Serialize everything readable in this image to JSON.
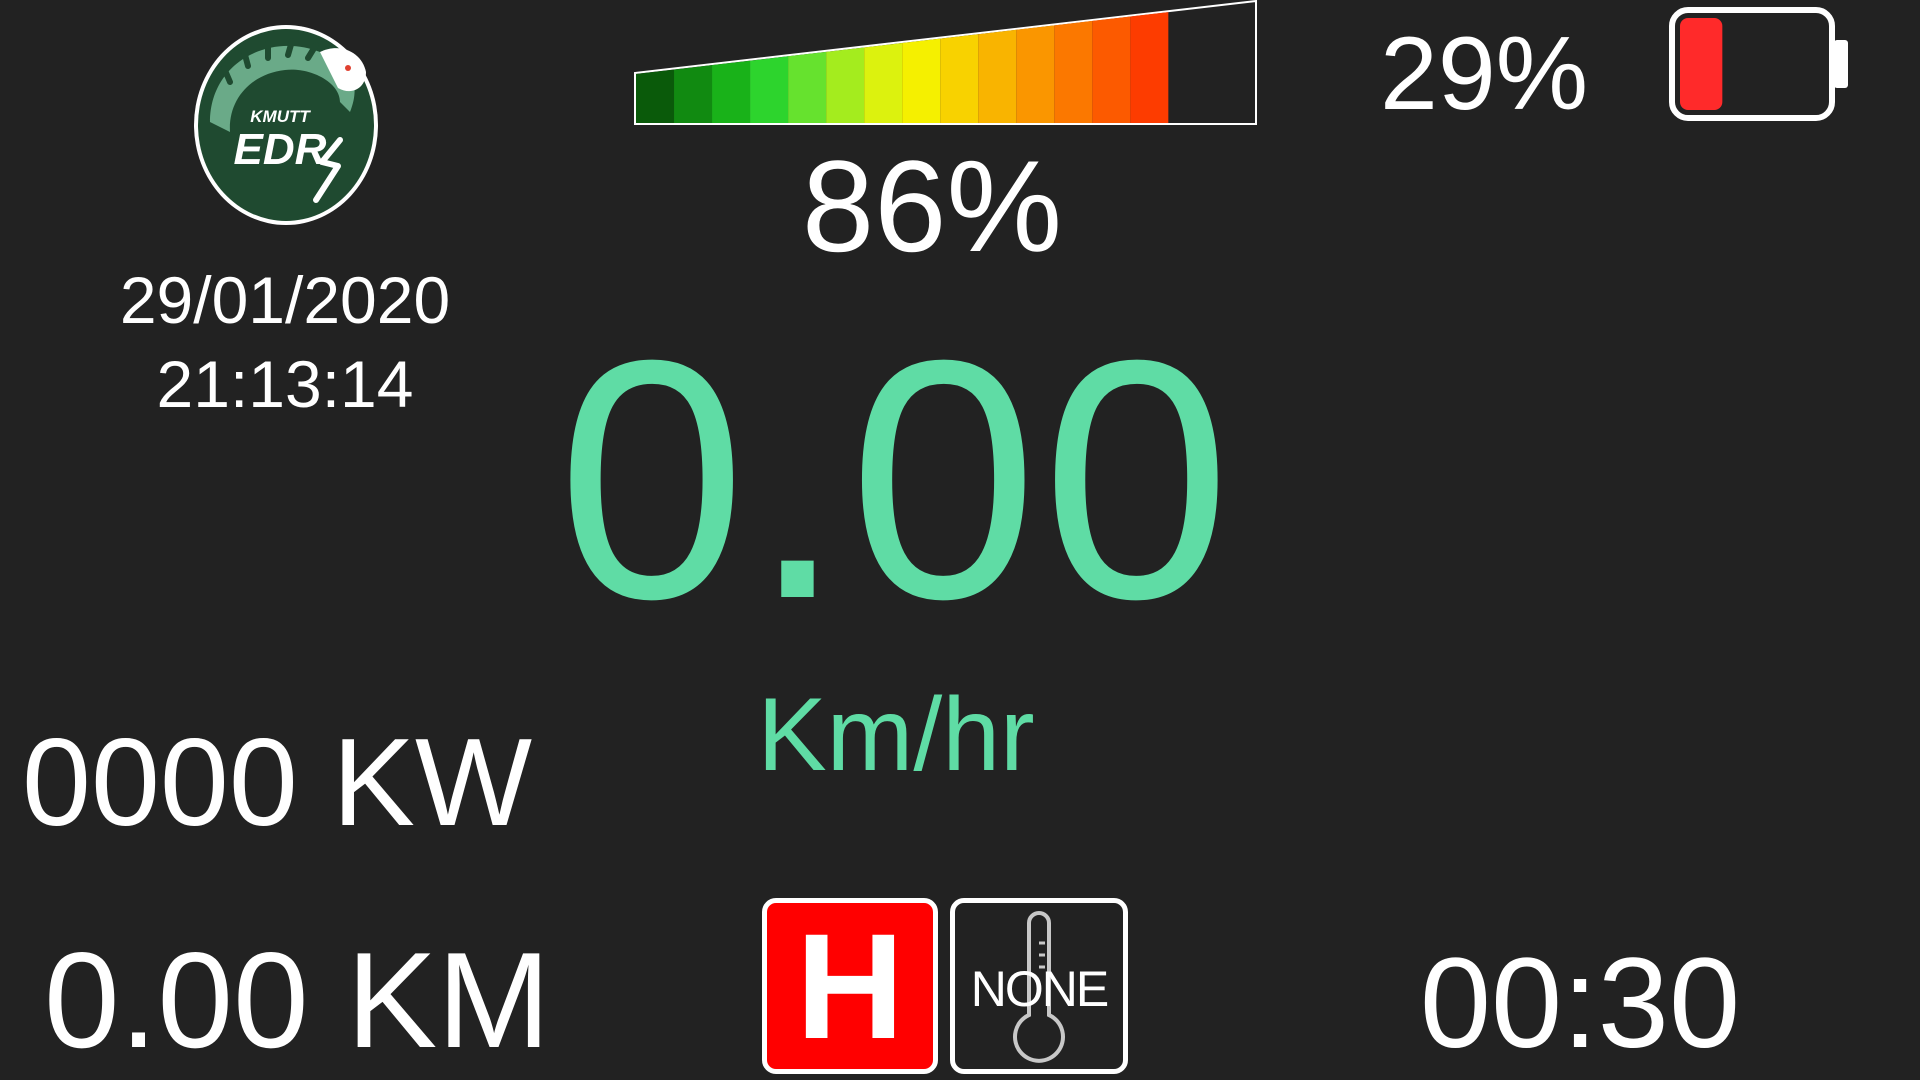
{
  "logo": {
    "top_text": "KMUTT",
    "main_text": "EDR",
    "colors": {
      "ring": "#ffffff",
      "fill": "#1f4a30",
      "accent": "#6aaa88",
      "eye": "#e04030"
    }
  },
  "datetime": {
    "date": "29/01/2020",
    "time": "21:13:14"
  },
  "throttle": {
    "percent_label": "86%",
    "level": 0.86,
    "colors": [
      "#0a5a0a",
      "#118a11",
      "#19b219",
      "#2dd42d",
      "#66e22e",
      "#a4ec1e",
      "#dcf20e",
      "#f5f000",
      "#f8d200",
      "#f9b400",
      "#fa9600",
      "#fb7800",
      "#fc5a00",
      "#fd3c00"
    ]
  },
  "battery": {
    "percent_label": "29%",
    "level": 0.29,
    "fill_color": "#ff2a2a"
  },
  "speed": {
    "value": "0.00",
    "unit": "Km/hr",
    "color": "#5fdca5"
  },
  "power": {
    "label": "0000 KW"
  },
  "distance": {
    "label": "0.00 KM"
  },
  "mode": {
    "label": "H",
    "color": "#ff0000"
  },
  "temperature": {
    "label": "NONE",
    "icon": "thermometer-icon"
  },
  "lap_time": {
    "label": "00:30"
  }
}
